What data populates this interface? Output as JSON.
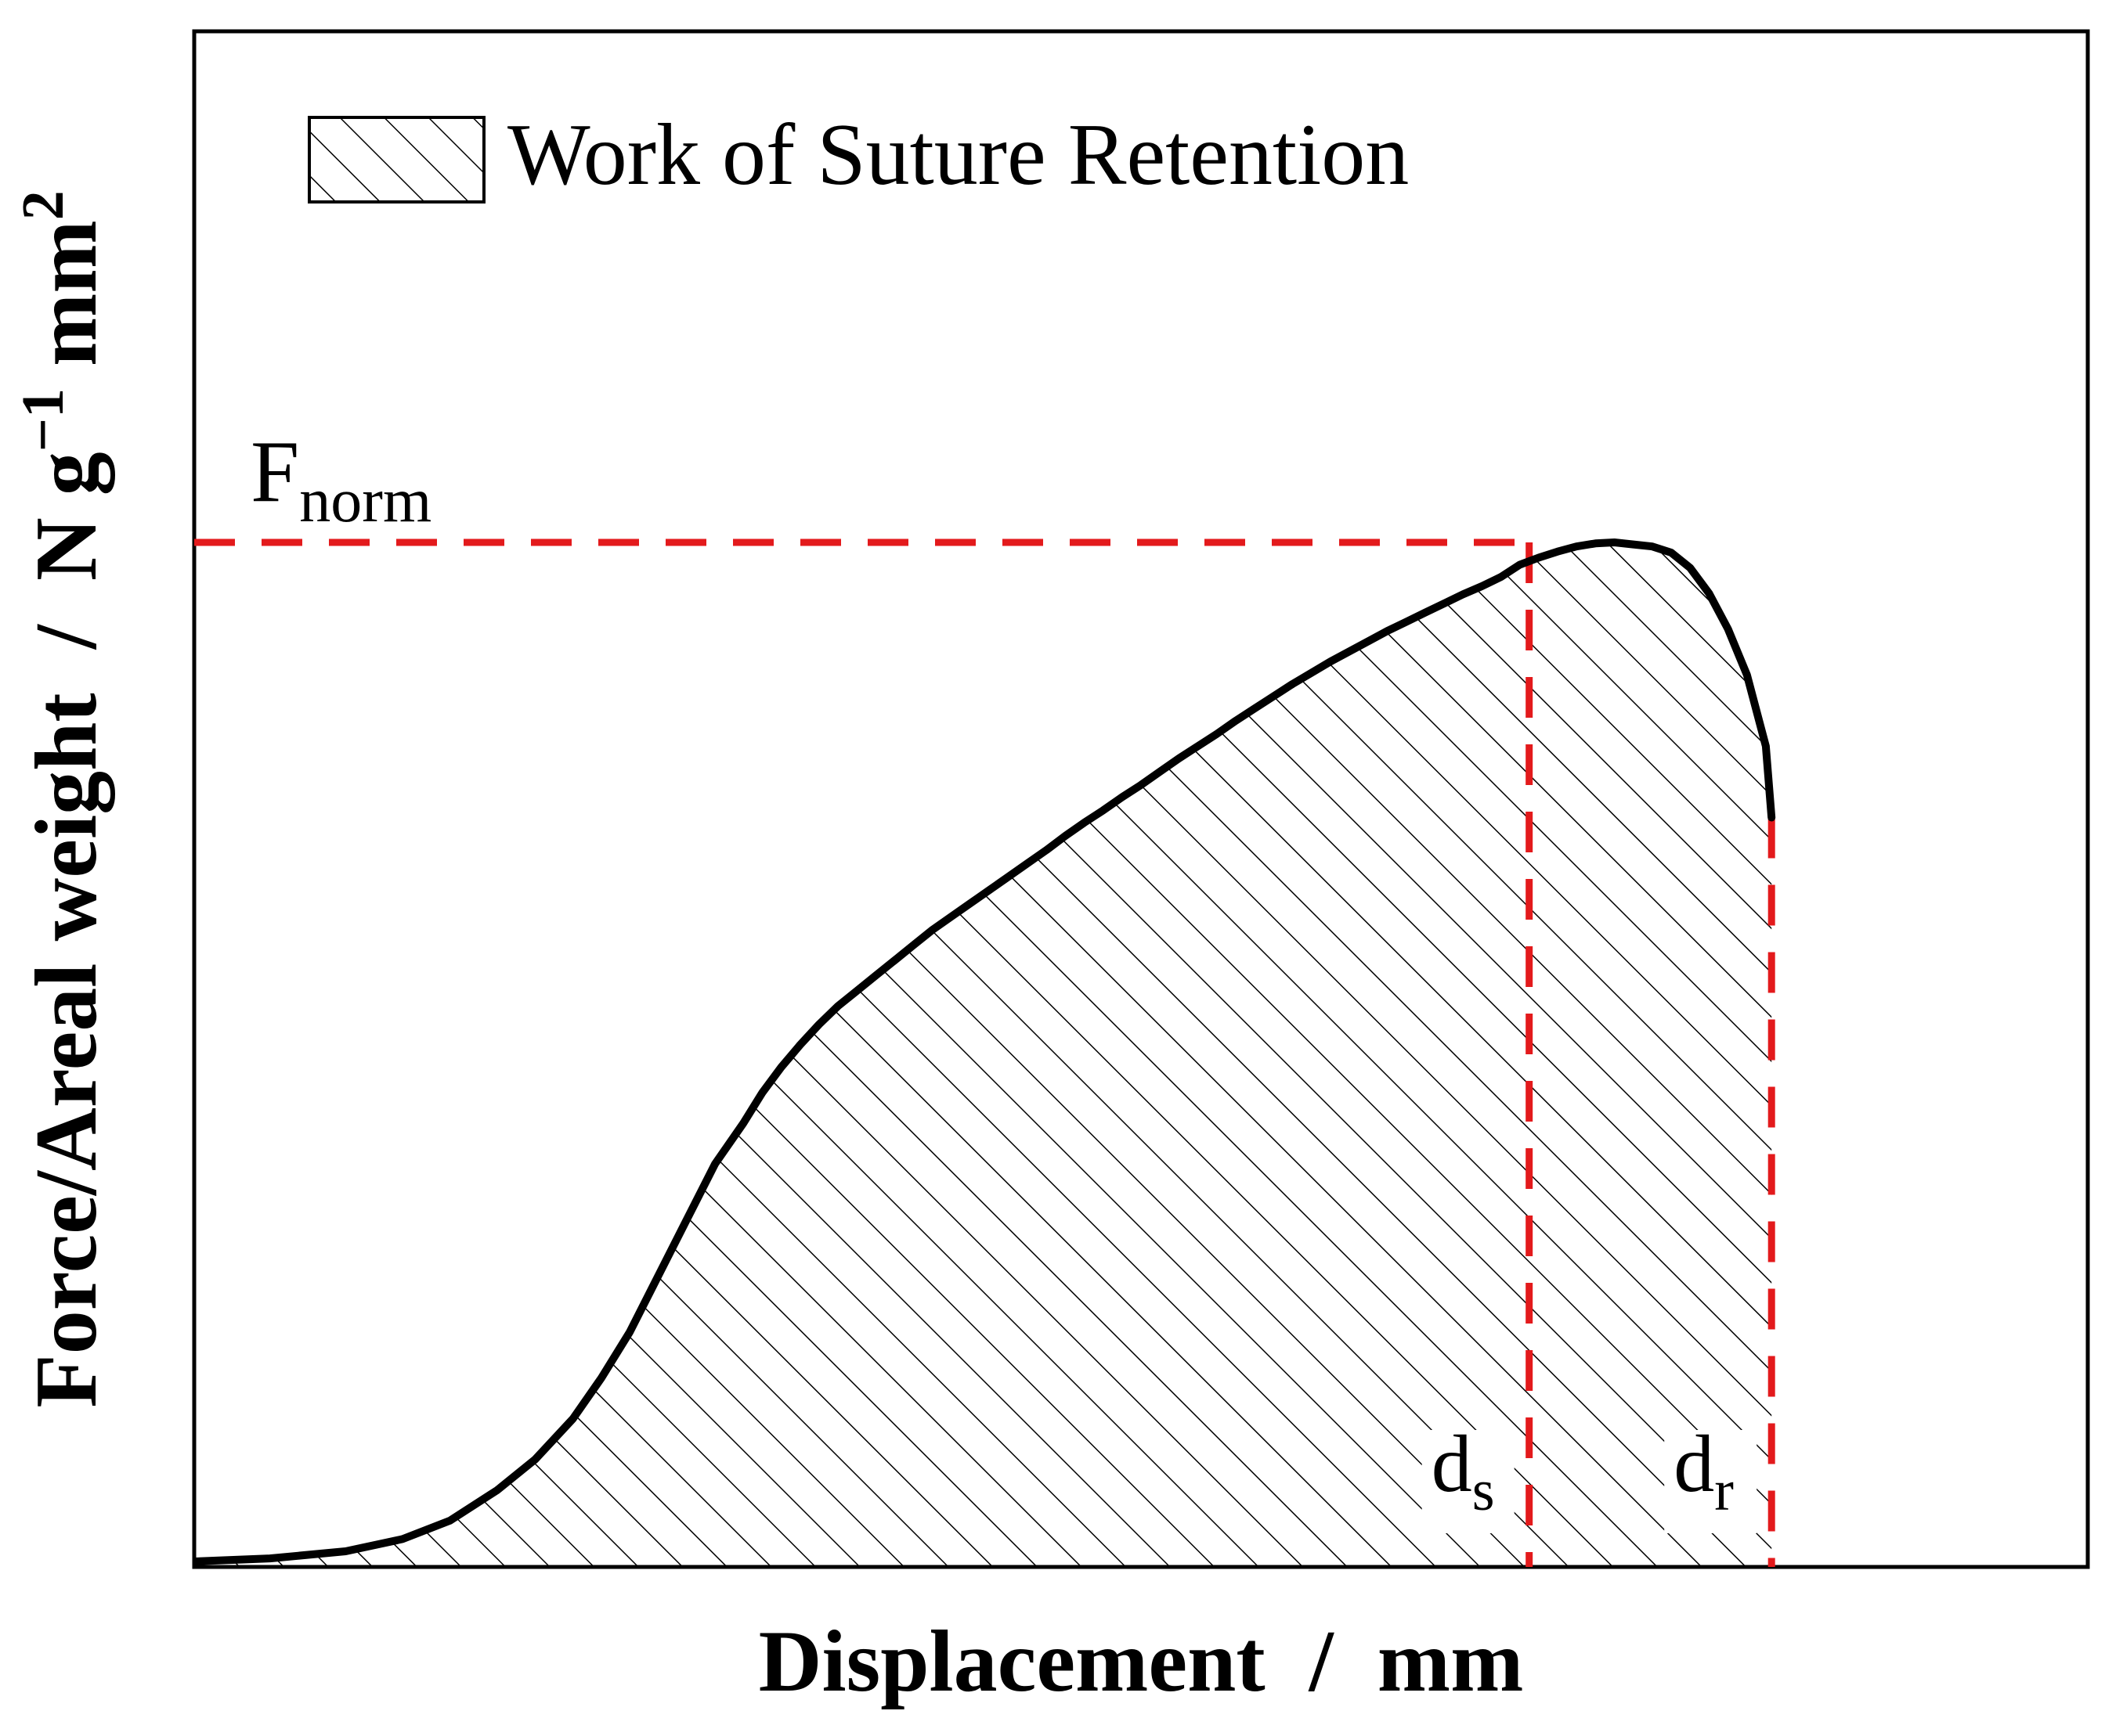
{
  "chart_data": {
    "type": "area",
    "title": "",
    "xlabel": "Displacement  /  mm",
    "ylabel": {
      "main": "Force/Areal weight  /  N g",
      "sup1": "−1",
      "mid": " mm",
      "sup2": "2"
    },
    "xlim": [
      0,
      1
    ],
    "ylim": [
      0,
      1
    ],
    "ticks_shown": false,
    "grid": false,
    "legend": {
      "position": "top-left",
      "entries": [
        {
          "label": "Work of Suture Retention",
          "fill": "hatched"
        }
      ]
    },
    "series": [
      {
        "name": "",
        "fill": "hatched",
        "color": "#000000",
        "x": [
          0.0,
          0.04,
          0.08,
          0.11,
          0.135,
          0.16,
          0.18,
          0.2,
          0.215,
          0.23,
          0.245,
          0.26,
          0.275,
          0.29,
          0.3,
          0.31,
          0.32,
          0.33,
          0.34,
          0.35,
          0.36,
          0.37,
          0.38,
          0.39,
          0.4,
          0.41,
          0.42,
          0.43,
          0.44,
          0.45,
          0.46,
          0.47,
          0.48,
          0.49,
          0.5,
          0.51,
          0.52,
          0.53,
          0.54,
          0.55,
          0.56,
          0.57,
          0.58,
          0.59,
          0.6,
          0.61,
          0.62,
          0.63,
          0.64,
          0.65,
          0.66,
          0.67,
          0.68,
          0.69,
          0.7,
          0.71,
          0.72,
          0.73,
          0.74,
          0.75,
          0.76,
          0.77,
          0.78,
          0.79,
          0.8,
          0.81,
          0.82,
          0.83,
          0.833
        ],
        "y": [
          0.0,
          0.003,
          0.01,
          0.022,
          0.04,
          0.07,
          0.1,
          0.14,
          0.18,
          0.225,
          0.28,
          0.335,
          0.39,
          0.43,
          0.46,
          0.485,
          0.507,
          0.527,
          0.545,
          0.56,
          0.575,
          0.59,
          0.605,
          0.62,
          0.633,
          0.646,
          0.659,
          0.672,
          0.685,
          0.698,
          0.712,
          0.725,
          0.737,
          0.75,
          0.762,
          0.775,
          0.788,
          0.8,
          0.812,
          0.825,
          0.837,
          0.849,
          0.861,
          0.872,
          0.883,
          0.893,
          0.903,
          0.913,
          0.922,
          0.931,
          0.94,
          0.949,
          0.957,
          0.966,
          0.978,
          0.985,
          0.991,
          0.996,
          0.999,
          1.0,
          0.998,
          0.996,
          0.99,
          0.975,
          0.95,
          0.915,
          0.87,
          0.8,
          0.73
        ]
      }
    ],
    "reference_lines": [
      {
        "kind": "horizontal",
        "y": 1.0,
        "x_from": 0.0,
        "x_to": 0.705,
        "color": "#e31a1c",
        "style": "dashed"
      },
      {
        "kind": "vertical",
        "x": 0.705,
        "y_from": 0.0,
        "y_to": 1.0,
        "color": "#e31a1c",
        "style": "dashed"
      },
      {
        "kind": "vertical",
        "x": 0.833,
        "y_from": 0.0,
        "y_to": 0.73,
        "color": "#e31a1c",
        "style": "dashed"
      }
    ],
    "annotations": [
      {
        "name": "fnorm",
        "text": "F",
        "sub": "norm",
        "anchor": "y=1.0 at left"
      },
      {
        "name": "ds",
        "text": "d",
        "sub": "s",
        "anchor": "x=0.705 at bottom"
      },
      {
        "name": "dr",
        "text": "d",
        "sub": "r",
        "anchor": "x=0.833 at bottom"
      }
    ]
  }
}
